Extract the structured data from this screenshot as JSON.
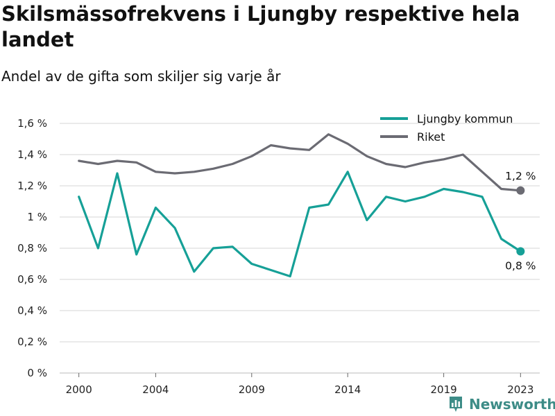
{
  "header": {
    "title": "Skilsmässofrekvens i Ljungby respektive hela landet",
    "subtitle": "Andel av de gifta som skiljer sig varje år"
  },
  "brand": {
    "name": "Newsworthy",
    "icon": "bar-chart-icon",
    "color": "#3d8c87"
  },
  "chart_data": {
    "type": "line",
    "title": "Skilsmässofrekvens i Ljungby respektive hela landet",
    "subtitle": "Andel av de gifta som skiljer sig varje år",
    "xlabel": "",
    "ylabel": "",
    "xlim": [
      1999,
      2024
    ],
    "ylim": [
      0,
      1.6
    ],
    "x_ticks": [
      2000,
      2004,
      2009,
      2014,
      2019,
      2023
    ],
    "y_ticks": [
      {
        "value": 0,
        "label": "0 %"
      },
      {
        "value": 0.2,
        "label": "0,2 %"
      },
      {
        "value": 0.4,
        "label": "0,4 %"
      },
      {
        "value": 0.6,
        "label": "0,6 %"
      },
      {
        "value": 0.8,
        "label": "0,8 %"
      },
      {
        "value": 1.0,
        "label": "1 %"
      },
      {
        "value": 1.2,
        "label": "1,2 %"
      },
      {
        "value": 1.4,
        "label": "1,4 %"
      },
      {
        "value": 1.6,
        "label": "1,6 %"
      }
    ],
    "grid": "horizontal",
    "legend": "top-right",
    "x": [
      2000,
      2001,
      2002,
      2003,
      2004,
      2005,
      2006,
      2007,
      2008,
      2009,
      2010,
      2011,
      2012,
      2013,
      2014,
      2015,
      2016,
      2017,
      2018,
      2019,
      2020,
      2021,
      2022,
      2023
    ],
    "series": [
      {
        "name": "Ljungby kommun",
        "color": "#16a097",
        "values": [
          1.13,
          0.8,
          1.28,
          0.76,
          1.06,
          0.93,
          0.65,
          0.8,
          0.81,
          0.7,
          0.66,
          0.62,
          1.06,
          1.08,
          1.29,
          0.98,
          1.13,
          1.1,
          1.13,
          1.18,
          1.16,
          1.13,
          0.86,
          0.78
        ],
        "end_label": "0,8 %"
      },
      {
        "name": "Riket",
        "color": "#6b6b73",
        "values": [
          1.36,
          1.34,
          1.36,
          1.35,
          1.29,
          1.28,
          1.29,
          1.31,
          1.34,
          1.39,
          1.46,
          1.44,
          1.43,
          1.53,
          1.47,
          1.39,
          1.34,
          1.32,
          1.35,
          1.37,
          1.4,
          1.29,
          1.18,
          1.17
        ],
        "end_label": "1,2 %"
      }
    ]
  }
}
